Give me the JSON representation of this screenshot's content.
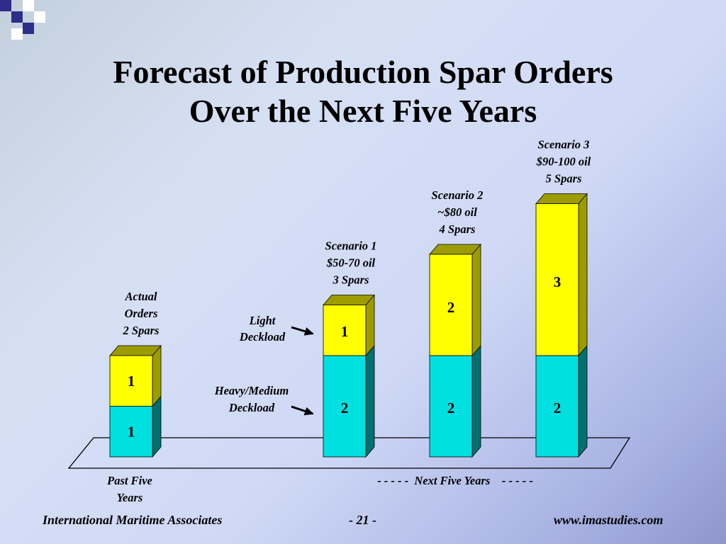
{
  "title": {
    "line1": "Forecast of Production Spar Orders",
    "line2": "Over the Next Five Years"
  },
  "colors": {
    "light_deckload": "#ffff00",
    "heavy_medium_deckload": "#00e0e0",
    "light_side": "#9c9c00",
    "heavy_side": "#007070",
    "logo_blue": "#2e2e8a",
    "logo_light": "#ffffff"
  },
  "chart_data": {
    "type": "bar",
    "stacked": true,
    "three_d": true,
    "categories": [
      "Actual",
      "Scenario 1",
      "Scenario 2",
      "Scenario 3"
    ],
    "series": [
      {
        "name": "Heavy/Medium Deckload",
        "values": [
          1,
          2,
          2,
          2
        ]
      },
      {
        "name": "Light Deckload",
        "values": [
          1,
          1,
          2,
          3
        ]
      }
    ],
    "totals": [
      2,
      3,
      4,
      5
    ],
    "bar_labels": [
      [
        "Actual",
        "Orders",
        "2 Spars"
      ],
      [
        "Scenario 1",
        "$50-70 oil",
        "3 Spars"
      ],
      [
        "Scenario 2",
        "~$80 oil",
        "4 Spars"
      ],
      [
        "Scenario 3",
        "$90-100 oil",
        "5 Spars"
      ]
    ],
    "annotations": [
      {
        "series": "Light Deckload",
        "lines": [
          "Light",
          "Deckload"
        ]
      },
      {
        "series": "Heavy/Medium Deckload",
        "lines": [
          "Heavy/Medium",
          "Deckload"
        ]
      }
    ],
    "axis_labels": {
      "past": [
        "Past Five",
        "Years"
      ],
      "next": "- - - - -  Next Five Years    - - - - -"
    }
  },
  "footer": {
    "left": "International Maritime Associates",
    "center": "- 21 -",
    "right": "www.imastudies.com"
  }
}
